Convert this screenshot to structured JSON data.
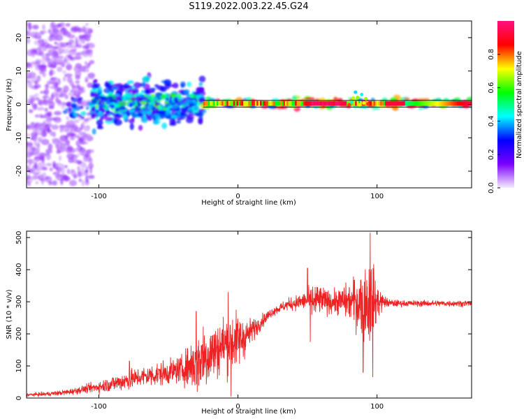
{
  "title": "S119.2022.003.22.45.G24",
  "chart_data": [
    {
      "type": "heatmap",
      "xlabel": "Height of straight line (km)",
      "ylabel": "Frequency (Hz)",
      "xlim": [
        -152,
        168
      ],
      "ylim": [
        -25,
        25
      ],
      "x_ticks": [
        -100,
        0,
        100
      ],
      "x_tick_labels": [
        "-100",
        "0",
        "100"
      ],
      "y_ticks": [
        -20,
        -10,
        0,
        10,
        20
      ],
      "y_tick_labels": [
        "-20",
        "-10",
        "0",
        "10",
        "20"
      ],
      "colorbar": {
        "label": "Normalized spectral amplitude",
        "range": [
          0,
          1
        ],
        "ticks": [
          0.0,
          0.2,
          0.4,
          0.6,
          0.8
        ],
        "tick_labels": [
          "0.0",
          "0.2",
          "0.4",
          "0.6",
          "0.8"
        ],
        "colormap": "rainbow",
        "colors": [
          "#f5ecff",
          "#7b00ff",
          "#0000ff",
          "#00ffff",
          "#00ff00",
          "#ffff00",
          "#ff0000",
          "#ff1080"
        ]
      },
      "line_frequency_hz": 0.4,
      "band_edges_hz": [
        -0.8,
        1.2
      ],
      "regions": [
        {
          "x_range": [
            -152,
            -105
          ],
          "f_spread": 24,
          "amplitude": 0.1
        },
        {
          "x_range": [
            -105,
            -25
          ],
          "f_spread": 7,
          "amplitude": 0.35
        },
        {
          "x_range": [
            -25,
            168
          ],
          "f_spread": 1.5,
          "amplitude": 0.8
        }
      ]
    },
    {
      "type": "line",
      "xlabel": "Height of straight line (km)",
      "ylabel": "SNR (10 * v/v)",
      "xlim": [
        -152,
        168
      ],
      "ylim": [
        0,
        520
      ],
      "x_ticks": [
        -100,
        0,
        100
      ],
      "x_tick_labels": [
        "-100",
        "0",
        "100"
      ],
      "y_ticks": [
        0,
        100,
        200,
        300,
        400,
        500
      ],
      "y_tick_labels": [
        "0",
        "100",
        "200",
        "300",
        "400",
        "500"
      ],
      "series": [
        {
          "color": "#ee2222",
          "x": [
            -152,
            -140,
            -130,
            -120,
            -110,
            -100,
            -90,
            -80,
            -70,
            -60,
            -50,
            -40,
            -35,
            -30,
            -25,
            -20,
            -15,
            -10,
            -5,
            0,
            5,
            10,
            15,
            20,
            25,
            30,
            35,
            40,
            45,
            50,
            55,
            60,
            65,
            70,
            75,
            80,
            85,
            90,
            95,
            100,
            105,
            110,
            120,
            130,
            140,
            150,
            160,
            168
          ],
          "mean": [
            10,
            12,
            15,
            20,
            28,
            35,
            45,
            55,
            65,
            72,
            80,
            90,
            100,
            110,
            130,
            140,
            150,
            170,
            175,
            180,
            190,
            210,
            230,
            250,
            270,
            280,
            290,
            295,
            300,
            305,
            300,
            305,
            300,
            300,
            300,
            300,
            300,
            300,
            300,
            300,
            300,
            295,
            295,
            295,
            295,
            295,
            295,
            295
          ],
          "amplitude": [
            4,
            5,
            6,
            8,
            10,
            15,
            20,
            25,
            25,
            30,
            30,
            35,
            55,
            80,
            90,
            80,
            70,
            75,
            75,
            70,
            50,
            30,
            20,
            15,
            12,
            12,
            15,
            18,
            20,
            25,
            50,
            35,
            30,
            30,
            40,
            45,
            70,
            90,
            120,
            50,
            15,
            10,
            8,
            8,
            8,
            8,
            8,
            8
          ],
          "peaks": [
            [
              -78,
              115
            ],
            [
              -30,
              270
            ],
            [
              -7,
              330
            ],
            [
              50,
              405
            ],
            [
              90,
              380
            ],
            [
              95,
              515
            ]
          ],
          "troughs": [
            [
              -5,
              5
            ],
            [
              52,
              175
            ],
            [
              90,
              80
            ],
            [
              97,
              65
            ]
          ]
        }
      ]
    }
  ]
}
